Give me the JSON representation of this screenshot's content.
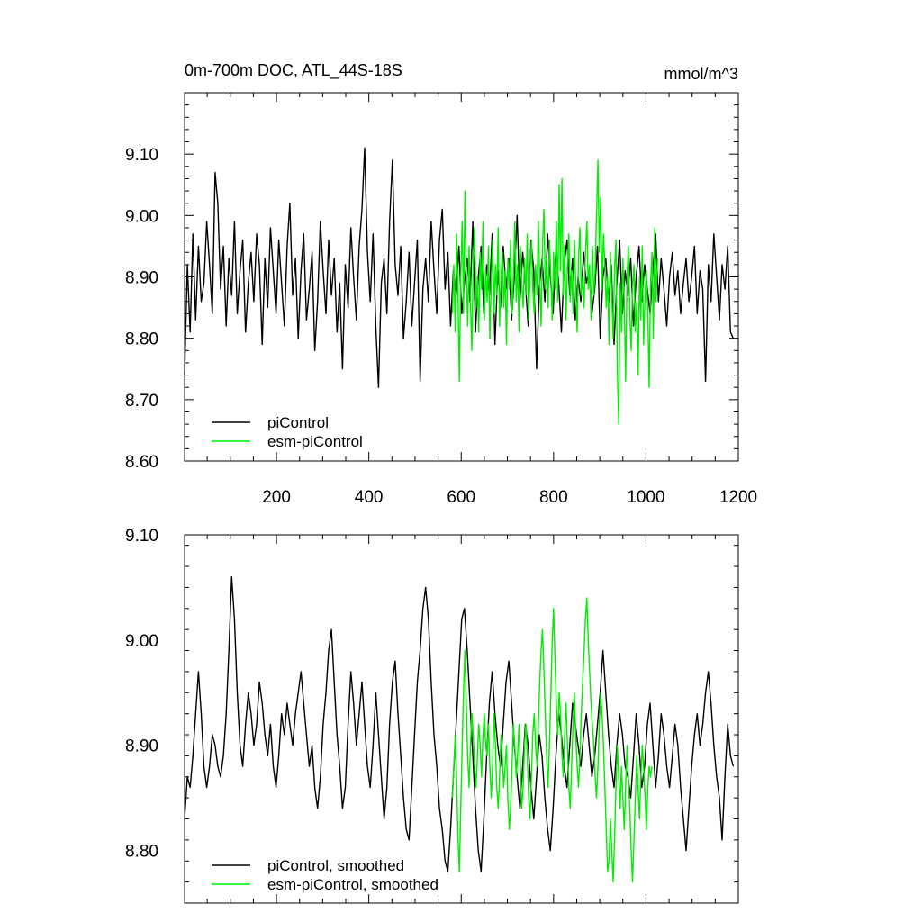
{
  "figure": {
    "title_left": "0m-700m DOC, ATL_44S-18S",
    "title_right": "mmol/m^3"
  },
  "chart_data": [
    {
      "type": "line",
      "panel": "top",
      "title": "0m-700m DOC, ATL_44S-18S",
      "units": "mmol/m^3",
      "xlim": [
        1,
        1200
      ],
      "ylim": [
        8.6,
        9.2
      ],
      "xticks": [
        200,
        400,
        600,
        800,
        1000,
        1200
      ],
      "xtick_labels": [
        "200",
        "400",
        "600",
        "800",
        "1000",
        "1200"
      ],
      "yticks": [
        8.6,
        8.7,
        8.8,
        8.9,
        9.0,
        9.1
      ],
      "ytick_labels": [
        "8.60",
        "8.70",
        "8.80",
        "8.90",
        "9.00",
        "9.10"
      ],
      "legend_position": "bottom-left",
      "grid": false,
      "series": [
        {
          "name": "piControl",
          "color": "#000000",
          "x_start": 1,
          "x_step": 6,
          "values": [
            8.74,
            8.92,
            8.81,
            8.97,
            8.83,
            8.95,
            8.86,
            8.89,
            8.99,
            8.92,
            8.84,
            9.07,
            9.02,
            8.88,
            8.95,
            8.82,
            8.93,
            8.87,
            8.99,
            8.84,
            8.91,
            8.96,
            8.81,
            8.89,
            8.94,
            8.86,
            8.97,
            8.92,
            8.79,
            8.93,
            8.85,
            8.98,
            8.91,
            8.84,
            8.96,
            8.89,
            8.82,
            8.95,
            9.02,
            8.87,
            8.93,
            8.8,
            8.91,
            8.97,
            8.83,
            8.88,
            8.94,
            8.78,
            8.86,
            8.99,
            8.91,
            8.84,
            8.96,
            8.87,
            8.93,
            8.81,
            8.89,
            8.75,
            8.92,
            8.85,
            8.98,
            8.9,
            8.83,
            8.95,
            9.01,
            9.11,
            8.94,
            8.86,
            8.97,
            8.82,
            8.72,
            8.89,
            8.93,
            8.84,
            8.99,
            9.09,
            8.92,
            8.87,
            8.95,
            8.8,
            8.86,
            8.94,
            8.82,
            8.89,
            8.96,
            8.73,
            8.88,
            8.93,
            8.86,
            8.99,
            8.91,
            8.84,
            8.96,
            9.01,
            8.88,
            8.94,
            8.82,
            8.91,
            8.87,
            8.95,
            8.84,
            8.89,
            8.93,
            8.86,
            8.99,
            8.81,
            8.9,
            8.95,
            8.84,
            8.92,
            8.87,
            8.97,
            8.79,
            8.91,
            8.85,
            8.95,
            8.88,
            8.93,
            8.83,
            8.9,
            9.0,
            8.86,
            8.94,
            8.89,
            8.82,
            8.96,
            8.91,
            8.75,
            8.88,
            8.93,
            8.86,
            8.97,
            8.9,
            8.84,
            8.95,
            8.89,
            8.81,
            8.92,
            8.96,
            8.87,
            8.93,
            8.83,
            8.9,
            8.86,
            8.94,
            8.89,
            8.91,
            8.84,
            8.88,
            8.95,
            8.8,
            8.9,
            8.93,
            8.86,
            8.92,
            8.79,
            8.89,
            8.96,
            8.84,
            8.91,
            8.87,
            8.93,
            8.82,
            8.9,
            8.95,
            8.86,
            8.92,
            8.88,
            8.84,
            8.91,
            8.97,
            8.86,
            8.93,
            8.88,
            8.82,
            8.9,
            8.94,
            8.87,
            8.91,
            8.84,
            8.89,
            8.93,
            8.86,
            8.9,
            8.95,
            8.84,
            8.91,
            8.88,
            8.73,
            8.92,
            8.86,
            8.97,
            8.9,
            8.83,
            8.92,
            8.88,
            8.95,
            8.81,
            8.8
          ]
        },
        {
          "name": "esm-piControl",
          "color": "#00ee00",
          "x_start": 581,
          "x_step": 3,
          "values": [
            8.84,
            8.92,
            8.81,
            8.97,
            8.87,
            8.73,
            8.9,
            8.99,
            8.84,
            9.04,
            8.91,
            8.82,
            8.95,
            8.86,
            8.78,
            8.93,
            8.98,
            8.85,
            8.9,
            8.81,
            8.94,
            8.88,
            8.99,
            8.83,
            8.91,
            8.86,
            8.95,
            8.8,
            8.89,
            8.96,
            8.84,
            8.92,
            8.87,
            8.98,
            8.82,
            8.9,
            8.94,
            8.85,
            8.91,
            8.79,
            8.93,
            8.88,
            8.96,
            8.84,
            8.9,
            8.99,
            8.86,
            8.92,
            8.81,
            8.95,
            8.89,
            8.85,
            8.93,
            8.87,
            8.97,
            8.83,
            8.91,
            8.96,
            8.88,
            8.84,
            8.92,
            8.87,
            8.99,
            8.9,
            8.82,
            8.95,
            9.01,
            8.88,
            8.93,
            8.85,
            8.96,
            8.9,
            8.83,
            8.94,
            8.88,
            8.99,
            8.86,
            9.05,
            8.91,
            9.06,
            8.87,
            8.95,
            8.83,
            8.92,
            8.97,
            8.86,
            8.91,
            8.84,
            8.96,
            8.89,
            8.81,
            8.93,
            8.98,
            8.87,
            8.9,
            8.85,
            8.94,
            8.99,
            8.88,
            8.92,
            8.83,
            8.95,
            8.87,
            8.91,
            9.0,
            9.09,
            8.94,
            9.03,
            8.88,
            8.97,
            8.92,
            8.85,
            8.9,
            8.79,
            8.94,
            8.87,
            8.8,
            8.91,
            8.96,
            8.75,
            8.66,
            8.89,
            8.81,
            8.93,
            8.86,
            8.73,
            8.9,
            8.95,
            8.84,
            8.78,
            8.88,
            8.92,
            8.81,
            8.86,
            8.74,
            8.9,
            8.83,
            8.95,
            8.79,
            8.87,
            8.91,
            8.84,
            8.72,
            8.89,
            8.94,
            8.8,
            8.98,
            8.86,
            8.93
          ]
        }
      ]
    },
    {
      "type": "line",
      "panel": "bottom",
      "xlim": [
        1,
        1200
      ],
      "ylim": [
        8.75,
        9.1
      ],
      "yticks": [
        8.8,
        8.9,
        9.0,
        9.1
      ],
      "ytick_labels": [
        "8.80",
        "8.90",
        "9.00",
        "9.10"
      ],
      "legend_position": "bottom-left",
      "grid": false,
      "series": [
        {
          "name": "piControl, smoothed",
          "color": "#000000",
          "x_start": 1,
          "x_step": 6,
          "values": [
            8.83,
            8.87,
            8.86,
            8.89,
            8.93,
            8.97,
            8.93,
            8.88,
            8.86,
            8.88,
            8.91,
            8.9,
            8.88,
            8.87,
            8.89,
            8.93,
            8.99,
            9.06,
            9.02,
            8.95,
            8.9,
            8.88,
            8.92,
            8.95,
            8.93,
            8.9,
            8.92,
            8.96,
            8.94,
            8.91,
            8.89,
            8.92,
            8.88,
            8.86,
            8.89,
            8.93,
            8.91,
            8.94,
            8.92,
            8.9,
            8.93,
            8.95,
            8.97,
            8.94,
            8.91,
            8.88,
            8.9,
            8.86,
            8.84,
            8.87,
            8.92,
            8.95,
            8.99,
            9.01,
            8.96,
            8.91,
            8.88,
            8.84,
            8.86,
            8.92,
            8.97,
            8.94,
            8.9,
            8.93,
            8.96,
            8.92,
            8.88,
            8.86,
            8.9,
            8.95,
            8.91,
            8.87,
            8.83,
            8.86,
            8.92,
            8.96,
            8.98,
            8.93,
            8.89,
            8.85,
            8.82,
            8.81,
            8.86,
            8.91,
            8.96,
            8.99,
            9.03,
            9.05,
            9.02,
            8.96,
            8.91,
            8.88,
            8.84,
            8.82,
            8.79,
            8.78,
            8.82,
            8.87,
            8.92,
            8.97,
            9.02,
            9.03,
            8.99,
            8.94,
            8.89,
            8.84,
            8.8,
            8.78,
            8.83,
            8.89,
            8.94,
            8.97,
            8.93,
            8.9,
            8.88,
            8.92,
            8.96,
            8.98,
            8.94,
            8.9,
            8.87,
            8.84,
            8.88,
            8.92,
            8.9,
            8.86,
            8.83,
            8.87,
            8.91,
            8.89,
            8.85,
            8.82,
            8.8,
            8.84,
            8.89,
            8.93,
            8.91,
            8.88,
            8.86,
            8.9,
            8.94,
            8.92,
            8.9,
            8.88,
            8.91,
            8.93,
            8.9,
            8.87,
            8.89,
            8.92,
            8.95,
            8.99,
            8.95,
            8.91,
            8.88,
            8.86,
            8.9,
            8.93,
            8.91,
            8.88,
            8.87,
            8.85,
            8.89,
            8.93,
            8.9,
            8.86,
            8.88,
            8.92,
            8.94,
            8.9,
            8.86,
            8.89,
            8.93,
            8.91,
            8.88,
            8.86,
            8.89,
            8.92,
            8.9,
            8.86,
            8.83,
            8.8,
            8.84,
            8.88,
            8.91,
            8.93,
            8.9,
            8.92,
            8.95,
            8.97,
            8.94,
            8.9,
            8.87,
            8.85,
            8.81,
            8.87,
            8.92,
            8.89,
            8.88
          ]
        },
        {
          "name": "esm-piControl, smoothed",
          "color": "#00ee00",
          "x_start": 581,
          "x_step": 3,
          "values": [
            8.85,
            8.88,
            8.91,
            8.87,
            8.81,
            8.78,
            8.84,
            8.9,
            8.95,
            8.99,
            8.94,
            8.89,
            8.86,
            8.9,
            8.93,
            8.91,
            8.88,
            8.86,
            8.89,
            8.92,
            8.9,
            8.87,
            8.91,
            8.93,
            8.9,
            8.89,
            8.92,
            8.88,
            8.85,
            8.88,
            8.93,
            8.9,
            8.86,
            8.84,
            8.87,
            8.91,
            8.89,
            8.86,
            8.88,
            8.9,
            8.85,
            8.82,
            8.84,
            8.88,
            8.92,
            8.9,
            8.87,
            8.89,
            8.92,
            8.88,
            8.84,
            8.86,
            8.9,
            8.92,
            8.89,
            8.85,
            8.83,
            8.87,
            8.91,
            8.93,
            8.9,
            8.88,
            8.92,
            8.96,
            8.99,
            9.01,
            8.97,
            8.93,
            8.89,
            8.86,
            8.9,
            8.95,
            9.0,
            9.03,
            8.98,
            8.94,
            8.91,
            8.95,
            8.93,
            8.89,
            8.87,
            8.91,
            8.94,
            8.9,
            8.86,
            8.84,
            8.88,
            8.92,
            8.95,
            8.91,
            8.88,
            8.86,
            8.89,
            8.93,
            8.96,
            8.99,
            9.02,
            9.04,
            9.0,
            8.97,
            8.94,
            8.92,
            8.9,
            8.87,
            8.85,
            8.88,
            8.92,
            8.95,
            8.93,
            8.9,
            8.86,
            8.82,
            8.78,
            8.79,
            8.83,
            8.8,
            8.77,
            8.81,
            8.86,
            8.9,
            8.87,
            8.84,
            8.88,
            8.85,
            8.82,
            8.86,
            8.9,
            8.87,
            8.84,
            8.8,
            8.77,
            8.81,
            8.85,
            8.89,
            8.86,
            8.83,
            8.87,
            8.9,
            8.88,
            8.85,
            8.82,
            8.86,
            8.88,
            8.87,
            8.88
          ]
        }
      ]
    }
  ]
}
